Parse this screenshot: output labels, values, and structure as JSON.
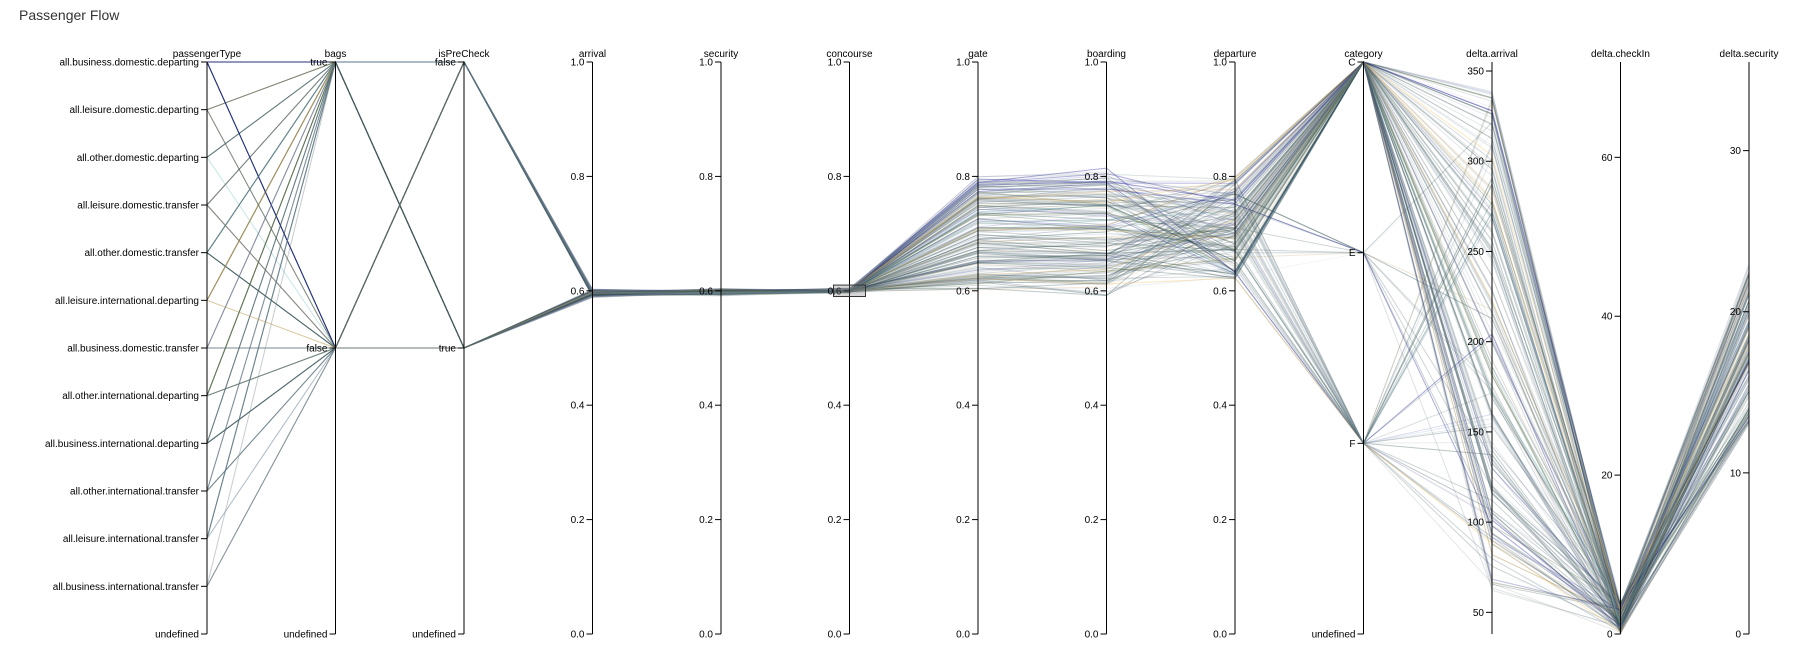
{
  "title": "Passenger Flow",
  "chart_data": {
    "type": "parallel-coordinates",
    "title": "Passenger Flow",
    "grid": false,
    "legend": "none",
    "dimensions": [
      {
        "name": "passengerType",
        "kind": "categorical",
        "ticks": [
          "all.business.domestic.departing",
          "all.leisure.domestic.departing",
          "all.other.domestic.departing",
          "all.leisure.domestic.transfer",
          "all.other.domestic.transfer",
          "all.leisure.international.departing",
          "all.business.domestic.transfer",
          "all.other.international.departing",
          "all.business.international.departing",
          "all.other.international.transfer",
          "all.leisure.international.transfer",
          "all.business.international.transfer",
          "undefined"
        ]
      },
      {
        "name": "bags",
        "kind": "categorical",
        "ticks": [
          "true",
          "false",
          "undefined"
        ]
      },
      {
        "name": "isPreCheck",
        "kind": "categorical",
        "ticks": [
          "false",
          "true",
          "undefined"
        ]
      },
      {
        "name": "arrival",
        "kind": "linear",
        "domain": [
          0,
          1
        ],
        "ticks": [
          "1.0",
          "0.8",
          "0.6",
          "0.4",
          "0.2",
          "0.0"
        ]
      },
      {
        "name": "security",
        "kind": "linear",
        "domain": [
          0,
          1
        ],
        "ticks": [
          "1.0",
          "0.8",
          "0.6",
          "0.4",
          "0.2",
          "0.0"
        ]
      },
      {
        "name": "concourse",
        "kind": "linear",
        "domain": [
          0,
          1
        ],
        "ticks": [
          "1.0",
          "0.8",
          "0.6",
          "0.4",
          "0.2",
          "0.0"
        ],
        "brush": [
          0.59,
          0.61
        ]
      },
      {
        "name": "gate",
        "kind": "linear",
        "domain": [
          0,
          1
        ],
        "ticks": [
          "1.0",
          "0.8",
          "0.6",
          "0.4",
          "0.2",
          "0.0"
        ]
      },
      {
        "name": "boarding",
        "kind": "linear",
        "domain": [
          0,
          1
        ],
        "ticks": [
          "1.0",
          "0.8",
          "0.6",
          "0.4",
          "0.2",
          "0.0"
        ]
      },
      {
        "name": "departure",
        "kind": "linear",
        "domain": [
          0,
          1
        ],
        "ticks": [
          "1.0",
          "0.8",
          "0.6",
          "0.4",
          "0.2",
          "0.0"
        ]
      },
      {
        "name": "category",
        "kind": "categorical",
        "ticks": [
          "C",
          "E",
          "F",
          "undefined"
        ]
      },
      {
        "name": "delta.arrival",
        "kind": "linear",
        "domain": [
          38,
          355
        ],
        "ticks": [
          "350",
          "300",
          "250",
          "200",
          "150",
          "100",
          "50"
        ]
      },
      {
        "name": "delta.checkIn",
        "kind": "linear",
        "domain": [
          0,
          72
        ],
        "ticks": [
          "60",
          "40",
          "20",
          "0"
        ]
      },
      {
        "name": "delta.security",
        "kind": "linear",
        "domain": [
          0,
          35.5
        ],
        "ticks": [
          "30",
          "20",
          "10",
          "0"
        ]
      }
    ],
    "series_colors": [
      "#00008b",
      "#8b6508",
      "#008b8b",
      "#cd853f",
      "#5f9ea0",
      "#f4c05a",
      "#9f93c6",
      "#556b2f",
      "#2f4f4f",
      "#708090",
      "#b0c4de",
      "#a9a9a9"
    ]
  }
}
